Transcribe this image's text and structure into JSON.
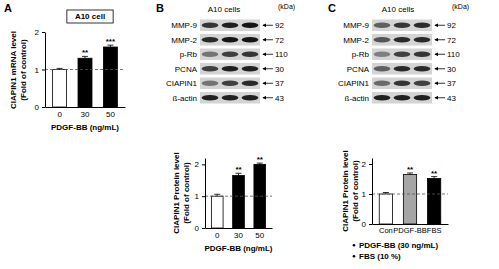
{
  "panels": [
    {
      "label": "A"
    },
    {
      "label": "B",
      "blot": {
        "title": "A10 cells",
        "unit": "(kDa)",
        "rows": [
          {
            "protein": "MMP-9",
            "kda": 92,
            "intensity": [
              0.75,
              0.85,
              0.9
            ]
          },
          {
            "protein": "MMP-2",
            "kda": 72,
            "intensity": [
              0.8,
              0.9,
              0.9
            ]
          },
          {
            "protein": "p-Rb",
            "kda": 110,
            "intensity": [
              0.45,
              0.7,
              0.75
            ]
          },
          {
            "protein": "PCNA",
            "kda": 30,
            "intensity": [
              0.7,
              0.85,
              0.85
            ]
          },
          {
            "protein": "CIAPIN1",
            "kda": 37,
            "intensity": [
              0.45,
              0.7,
              0.8
            ]
          },
          {
            "protein": "ß-actin",
            "kda": 43,
            "intensity": [
              0.85,
              0.85,
              0.85
            ]
          }
        ]
      }
    },
    {
      "label": "C",
      "blot": {
        "title": "A10 cells",
        "unit": "(kDa)",
        "rows": [
          {
            "protein": "MMP-9",
            "kda": 92,
            "intensity": [
              0.55,
              0.75,
              0.8
            ]
          },
          {
            "protein": "MMP-2",
            "kda": 72,
            "intensity": [
              0.6,
              0.8,
              0.8
            ]
          },
          {
            "protein": "p-Rb",
            "kda": 110,
            "intensity": [
              0.4,
              0.7,
              0.75
            ]
          },
          {
            "protein": "PCNA",
            "kda": 30,
            "intensity": [
              0.55,
              0.8,
              0.8
            ]
          },
          {
            "protein": "CIAPIN1",
            "kda": 37,
            "intensity": [
              0.5,
              0.75,
              0.7
            ]
          },
          {
            "protein": "ß-actin",
            "kda": 43,
            "intensity": [
              0.85,
              0.85,
              0.85
            ]
          }
        ]
      }
    }
  ],
  "chart_data": [
    {
      "type": "bar",
      "title": "A10 cell",
      "categories": [
        "0",
        "30",
        "50"
      ],
      "values": [
        1.0,
        1.3,
        1.6
      ],
      "errors": [
        0.03,
        0.05,
        0.05
      ],
      "colors": [
        "#ffffff",
        "#000000",
        "#000000"
      ],
      "ylim": [
        0,
        2
      ],
      "yticks": [
        0,
        1,
        2
      ],
      "ylabel": [
        "CIAPIN1 mRNA level",
        "(Fold of control)"
      ],
      "xlabel": "PDGF-BB (ng/mL)",
      "hline": 1,
      "annotations": [
        {
          "category": 1,
          "text": "**"
        },
        {
          "category": 2,
          "text": "***"
        }
      ]
    },
    {
      "type": "bar",
      "categories": [
        "0",
        "30",
        "50"
      ],
      "values": [
        1.0,
        1.65,
        2.0
      ],
      "errors": [
        0.06,
        0.07,
        0.04
      ],
      "colors": [
        "#ffffff",
        "#000000",
        "#000000"
      ],
      "ylim": [
        0,
        2.2
      ],
      "yticks": [
        0,
        1,
        2
      ],
      "ylabel": [
        "CIAPIN1 Protein level",
        "(Fold of control)"
      ],
      "xlabel": "PDGF-BB (ng/mL)",
      "hline": 1,
      "annotations": [
        {
          "category": 1,
          "text": "**"
        },
        {
          "category": 2,
          "text": "**"
        }
      ]
    },
    {
      "type": "bar",
      "categories": [
        "Con",
        "PDGF-BB",
        "FBS"
      ],
      "values": [
        1.0,
        1.65,
        1.52
      ],
      "errors": [
        0.05,
        0.05,
        0.06
      ],
      "colors": [
        "#ffffff",
        "#a6a6a6",
        "#000000"
      ],
      "ylim": [
        0,
        2.2
      ],
      "yticks": [
        0,
        1,
        2
      ],
      "ylabel": [
        "CIAPIN1 Protein level",
        "(Fold of control)"
      ],
      "hline": 1,
      "annotations": [
        {
          "category": 1,
          "text": "**"
        },
        {
          "category": 2,
          "text": "**"
        }
      ],
      "notes": [
        "PDGF-BB (30 ng/mL)",
        "FBS (10 %)"
      ]
    }
  ]
}
